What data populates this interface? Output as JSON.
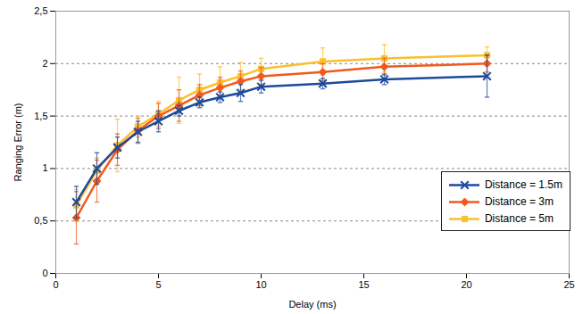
{
  "chart_data": {
    "type": "line",
    "x_label": "Delay (ms)",
    "y_label": "Ranging Error (m)",
    "x": [
      1,
      2,
      3,
      4,
      5,
      6,
      7,
      8,
      9,
      10,
      13,
      16,
      21
    ],
    "xlim": [
      0,
      25
    ],
    "xticks": [
      0,
      5,
      10,
      15,
      20,
      25
    ],
    "ylim": [
      0,
      2.5
    ],
    "yticks": [
      0,
      {
        "value": 0.5,
        "label": "0,5"
      },
      1,
      {
        "value": 1.5,
        "label": "1,5"
      },
      2,
      {
        "value": 2.5,
        "label": "2,5"
      }
    ],
    "grid": true,
    "legend": "bottom-right",
    "series": [
      {
        "name": "Distance = 1.5m",
        "color": "#1c4a9c",
        "marker": "x",
        "values": [
          0.68,
          1.0,
          1.2,
          1.35,
          1.45,
          1.55,
          1.63,
          1.68,
          1.72,
          1.78,
          1.81,
          1.85,
          1.88
        ],
        "errors": [
          0.15,
          0.15,
          0.1,
          0.1,
          0.1,
          0.05,
          0.05,
          0.05,
          0.08,
          0.06,
          0.05,
          0.05,
          0.2
        ]
      },
      {
        "name": "Distance = 3m",
        "color": "#f25a1d",
        "marker": "diamond",
        "values": [
          0.53,
          0.88,
          1.18,
          1.36,
          1.5,
          1.6,
          1.7,
          1.77,
          1.83,
          1.88,
          1.92,
          1.97,
          2.0
        ],
        "errors": [
          0.25,
          0.2,
          0.15,
          0.12,
          0.12,
          0.15,
          0.1,
          0.1,
          0.1,
          0.08,
          0.08,
          0.08,
          0.08
        ]
      },
      {
        "name": "Distance = 5m",
        "color": "#f9c02f",
        "marker": "square",
        "values": [
          0.65,
          0.98,
          1.22,
          1.4,
          1.52,
          1.65,
          1.75,
          1.82,
          1.88,
          1.95,
          2.02,
          2.05,
          2.08
        ],
        "errors": [
          0.15,
          0.12,
          0.25,
          0.1,
          0.12,
          0.22,
          0.15,
          0.15,
          0.13,
          0.1,
          0.13,
          0.13,
          0.08
        ]
      }
    ]
  }
}
